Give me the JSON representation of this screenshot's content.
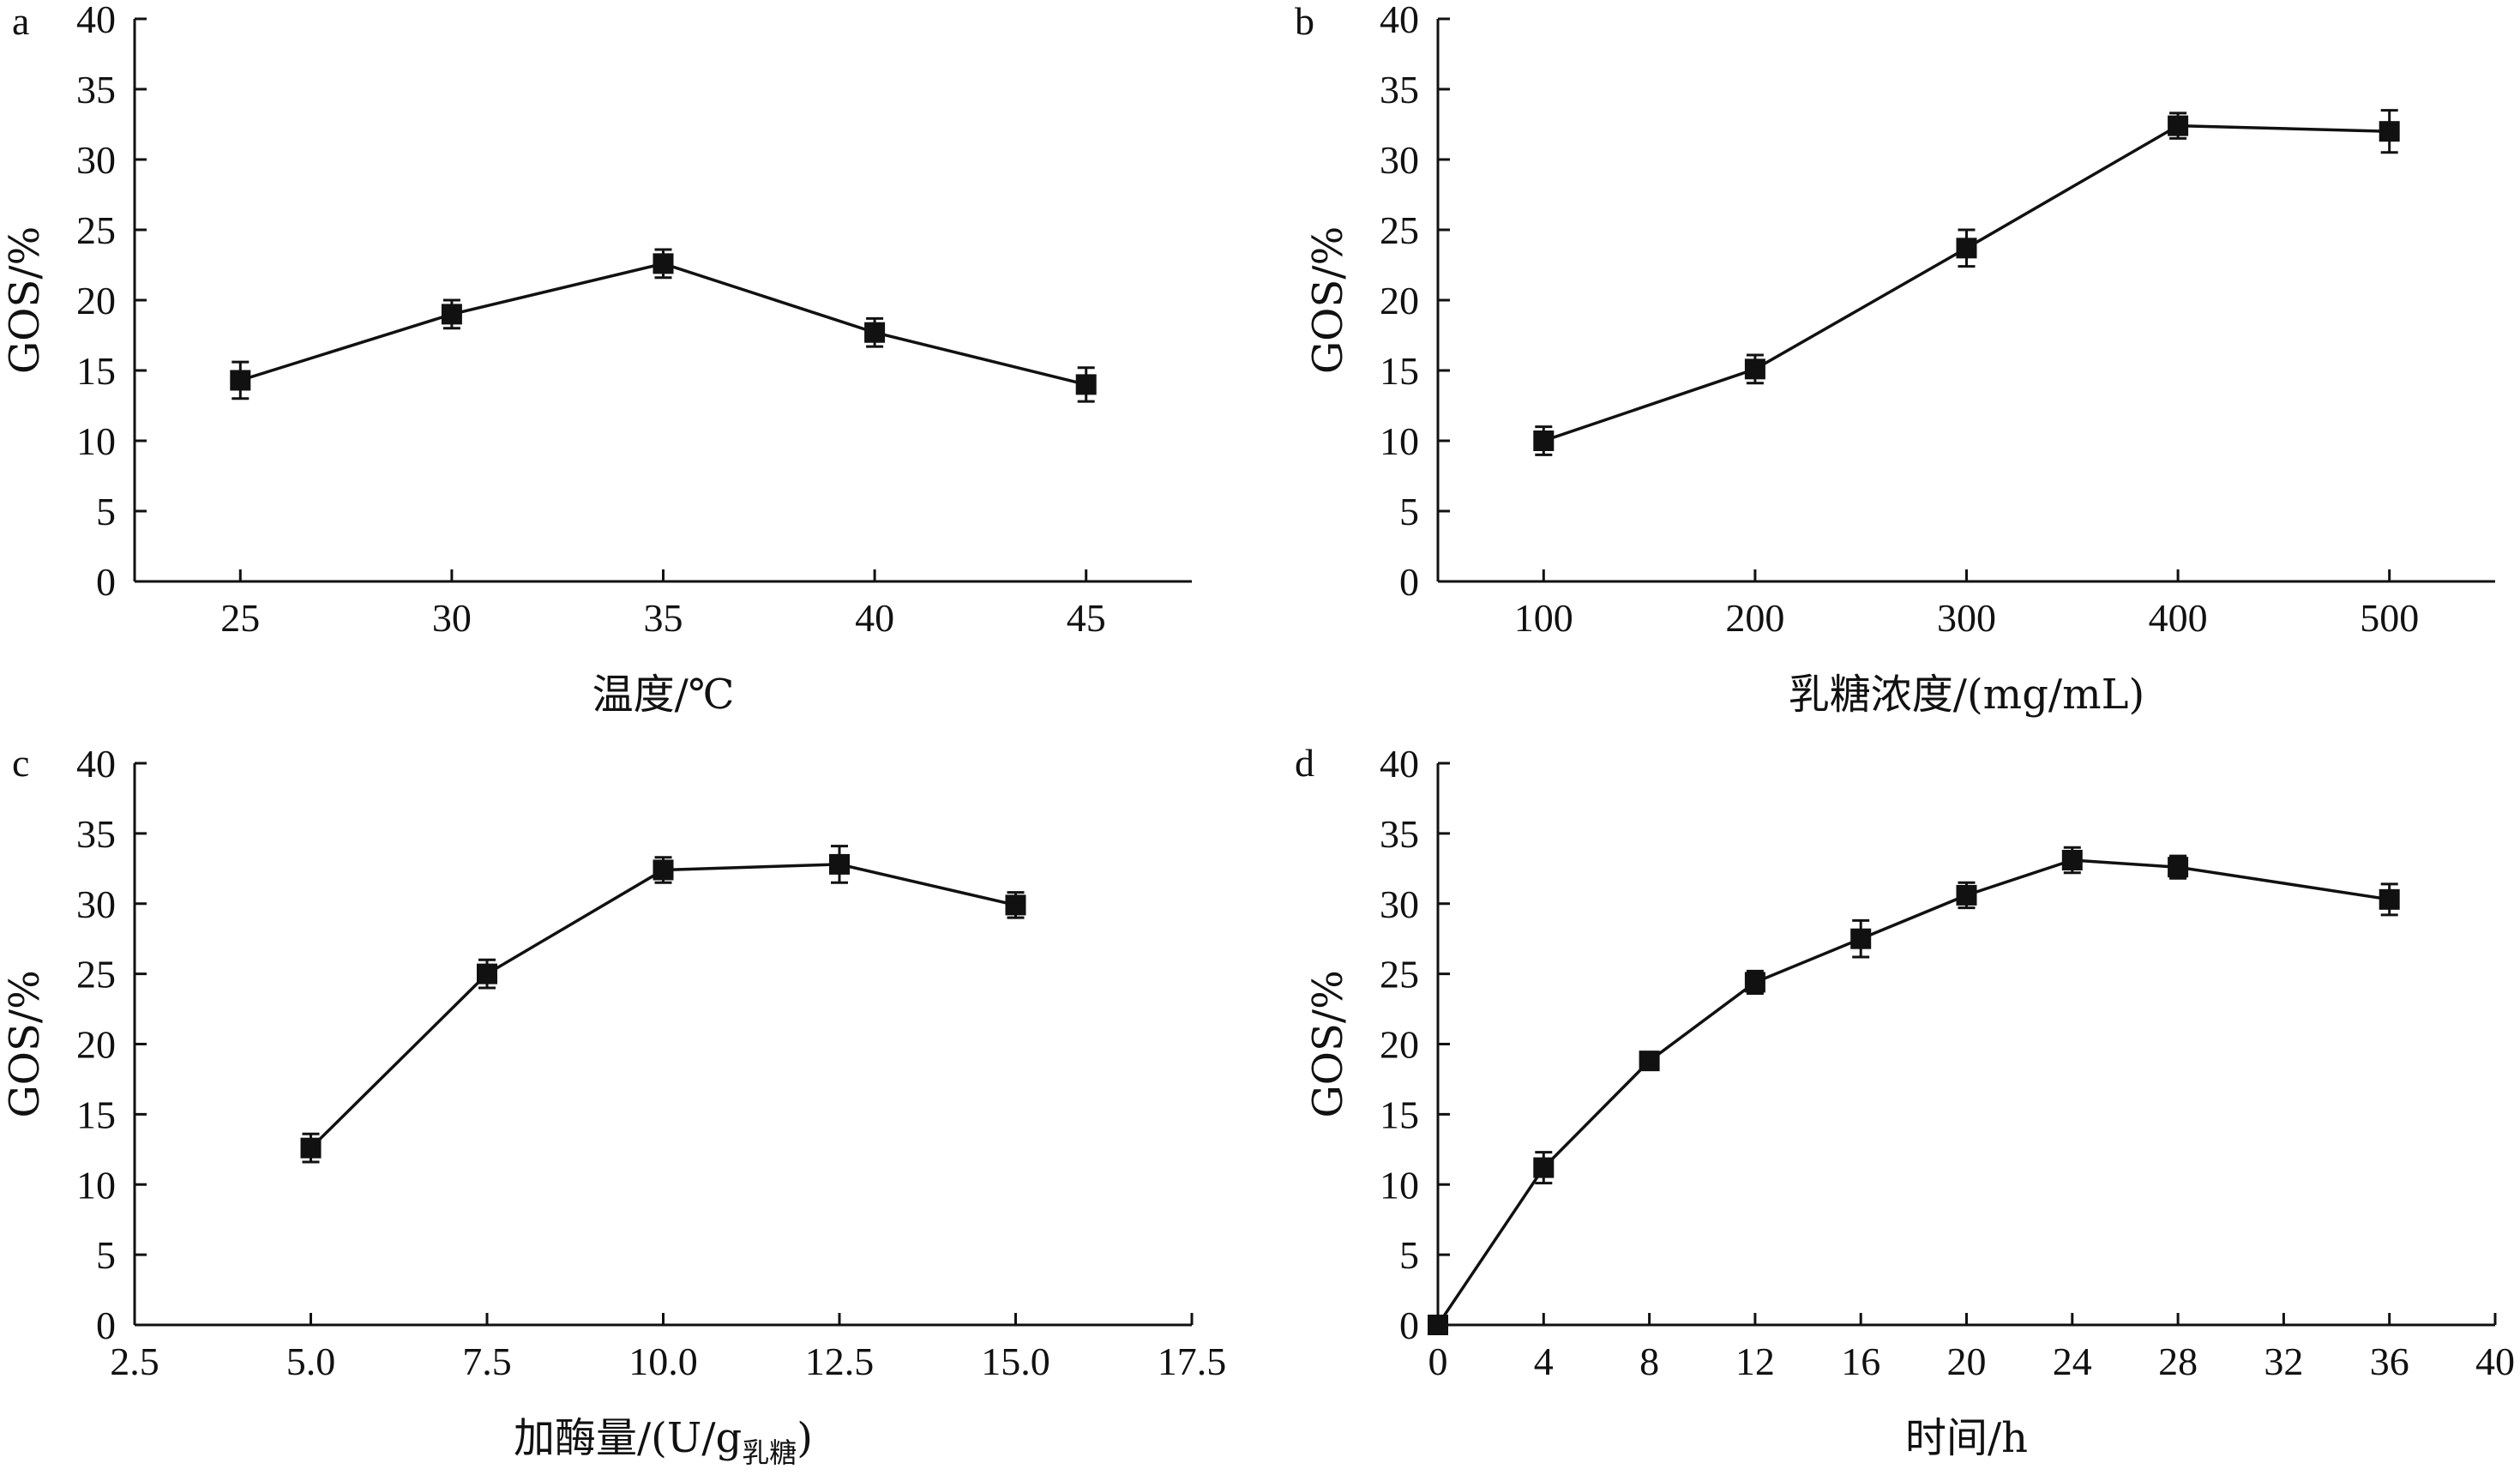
{
  "chart_data": [
    {
      "panel": "a",
      "type": "line",
      "ylabel": "GOS/%",
      "xlabel": "温度/℃",
      "xlabel_sub": "",
      "xlabel_tail": "",
      "xlim": [
        22.5,
        47.5
      ],
      "ylim": [
        0,
        40
      ],
      "xticks": [
        25,
        30,
        35,
        40,
        45
      ],
      "xtick_labels": [
        "25",
        "30",
        "35",
        "40",
        "45"
      ],
      "yticks": [
        0,
        5,
        10,
        15,
        20,
        25,
        30,
        35,
        40
      ],
      "ytick_labels": [
        "0",
        "5",
        "10",
        "15",
        "20",
        "25",
        "30",
        "35",
        "40"
      ],
      "x": [
        25,
        30,
        35,
        40,
        45
      ],
      "y": [
        14.3,
        19.0,
        22.6,
        17.7,
        14.0
      ],
      "err": [
        1.3,
        1.0,
        1.0,
        1.0,
        1.2
      ]
    },
    {
      "panel": "b",
      "type": "line",
      "ylabel": "GOS/%",
      "xlabel": "乳糖浓度/(mg/mL)",
      "xlabel_sub": "",
      "xlabel_tail": "",
      "xlim": [
        50,
        550
      ],
      "ylim": [
        0,
        40
      ],
      "xticks": [
        100,
        200,
        300,
        400,
        500
      ],
      "xtick_labels": [
        "100",
        "200",
        "300",
        "400",
        "500"
      ],
      "yticks": [
        0,
        5,
        10,
        15,
        20,
        25,
        30,
        35,
        40
      ],
      "ytick_labels": [
        "0",
        "5",
        "10",
        "15",
        "20",
        "25",
        "30",
        "35",
        "40"
      ],
      "x": [
        100,
        200,
        300,
        400,
        500
      ],
      "y": [
        10.0,
        15.1,
        23.7,
        32.4,
        32.0
      ],
      "err": [
        1.0,
        1.0,
        1.3,
        0.9,
        1.5
      ]
    },
    {
      "panel": "c",
      "type": "line",
      "ylabel": "GOS/%",
      "xlabel": "加酶量/(U/g",
      "xlabel_sub": "乳糖",
      "xlabel_tail": ")",
      "xlim": [
        2.5,
        17.5
      ],
      "ylim": [
        0,
        40
      ],
      "xticks": [
        2.5,
        5.0,
        7.5,
        10.0,
        12.5,
        15.0,
        17.5
      ],
      "xtick_labels": [
        "2.5",
        "5.0",
        "7.5",
        "10.0",
        "12.5",
        "15.0",
        "17.5"
      ],
      "yticks": [
        0,
        5,
        10,
        15,
        20,
        25,
        30,
        35,
        40
      ],
      "ytick_labels": [
        "0",
        "5",
        "10",
        "15",
        "20",
        "25",
        "30",
        "35",
        "40"
      ],
      "x": [
        5.0,
        7.5,
        10.0,
        12.5,
        15.0
      ],
      "y": [
        12.6,
        25.0,
        32.4,
        32.8,
        29.9
      ],
      "err": [
        1.0,
        1.0,
        0.9,
        1.3,
        0.9
      ]
    },
    {
      "panel": "d",
      "type": "line",
      "ylabel": "GOS/%",
      "xlabel": "时间/h",
      "xlabel_sub": "",
      "xlabel_tail": "",
      "xlim": [
        0,
        40
      ],
      "ylim": [
        0,
        40
      ],
      "xticks": [
        0,
        4,
        8,
        12,
        16,
        20,
        24,
        28,
        32,
        36,
        40
      ],
      "xtick_labels": [
        "0",
        "4",
        "8",
        "12",
        "16",
        "20",
        "24",
        "28",
        "32",
        "36",
        "40"
      ],
      "yticks": [
        0,
        5,
        10,
        15,
        20,
        25,
        30,
        35,
        40
      ],
      "ytick_labels": [
        "0",
        "5",
        "10",
        "15",
        "20",
        "25",
        "30",
        "35",
        "40"
      ],
      "x": [
        0,
        4,
        8,
        12,
        16,
        20,
        24,
        28,
        36
      ],
      "y": [
        0,
        11.2,
        18.8,
        24.4,
        27.5,
        30.6,
        33.1,
        32.6,
        30.3
      ],
      "err": [
        0,
        1.1,
        0.5,
        0.8,
        1.3,
        0.9,
        0.9,
        0.8,
        1.1
      ]
    }
  ]
}
